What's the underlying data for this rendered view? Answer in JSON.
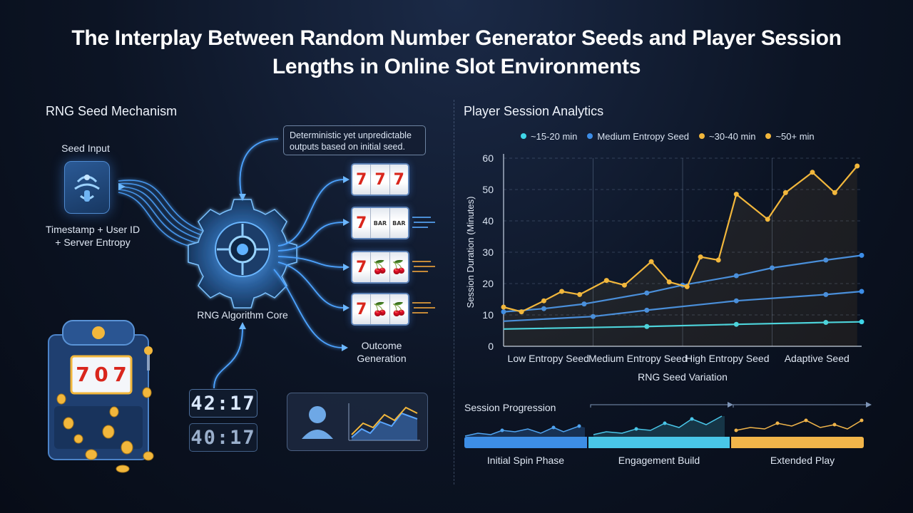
{
  "title": {
    "line1": "The Interplay Between Random Number Generator Seeds and Player Session",
    "line2": "Lengths in Online Slot Environments"
  },
  "left": {
    "section_title": "RNG Seed Mechanism",
    "seed_input_label": "Seed Input",
    "seed_input_desc_line1": "Timestamp + User ID",
    "seed_input_desc_line2": "+ Server Entropy",
    "core_label": "RNG Algorithm Core",
    "callout_line1": "Deterministic yet unpredictable",
    "callout_line2": "outputs based on initial seed.",
    "outcome_line1": "Outcome",
    "outcome_line2": "Generation",
    "reels": [
      [
        "7",
        "7",
        "7"
      ],
      [
        "7",
        "BAR",
        "BAR"
      ],
      [
        "7",
        "🍒",
        "🍒"
      ],
      [
        "7",
        "🍒",
        "🍒"
      ]
    ],
    "slot_machine_reels": [
      "7",
      "0",
      "7"
    ],
    "timer_1": "42:17",
    "timer_2": "40:17"
  },
  "right": {
    "section_title": "Player Session Analytics",
    "legend": [
      {
        "label": "~15-20 min",
        "color": "#3fd6e8"
      },
      {
        "label": "Medium Entropy Seed",
        "color": "#3c8de8"
      },
      {
        "label": "~30-40 min",
        "color": "#f2b73c"
      },
      {
        "label": "~50+ min",
        "color": "#f2b73c"
      }
    ],
    "progress": {
      "title": "Session Progression",
      "phases": [
        "Initial Spin Phase",
        "Engagement Build",
        "Extended Play"
      ],
      "colors": [
        "#3d8ee6",
        "#49c6e8",
        "#f1b54a"
      ]
    }
  },
  "chart_data": {
    "type": "line",
    "xlabel": "RNG Seed Variation",
    "ylabel": "Session Duration (Minutes)",
    "ylim": [
      0,
      60
    ],
    "yticks": [
      0,
      10,
      20,
      30,
      40,
      50,
      60
    ],
    "categories": [
      "Low Entropy Seed",
      "Medium Entropy Seed",
      "High Entropy Seed",
      "Adaptive Seed"
    ],
    "xlim": [
      0,
      4
    ],
    "series": [
      {
        "color": "#3fd6e8",
        "x": [
          0,
          1.6,
          2.6,
          3.6,
          4.0
        ],
        "values": [
          5.5,
          6.3,
          7.0,
          7.6,
          7.8
        ]
      },
      {
        "color": "#3c8de8",
        "x": [
          0,
          1,
          1.6,
          2.6,
          3.6,
          4.0
        ],
        "values": [
          8.0,
          9.5,
          11.5,
          14.5,
          16.5,
          17.5
        ]
      },
      {
        "color": "#3c8de8",
        "x": [
          0,
          0.45,
          0.9,
          1.6,
          2.0,
          2.6,
          3.0,
          3.6,
          4.0
        ],
        "values": [
          11.0,
          12.0,
          13.5,
          17.0,
          19.5,
          22.5,
          25.0,
          27.5,
          29.0
        ]
      },
      {
        "color": "#f2b73c",
        "x": [
          0,
          0.2,
          0.45,
          0.65,
          0.85,
          1.15,
          1.35,
          1.65,
          1.85,
          2.05,
          2.2,
          2.4,
          2.6,
          2.95,
          3.15,
          3.45,
          3.7,
          3.95
        ],
        "values": [
          12.5,
          11.0,
          14.5,
          17.5,
          16.5,
          21.0,
          19.5,
          27.0,
          20.5,
          19.0,
          28.5,
          27.5,
          48.5,
          40.5,
          49.0,
          55.5,
          49.0,
          57.5
        ]
      }
    ]
  }
}
